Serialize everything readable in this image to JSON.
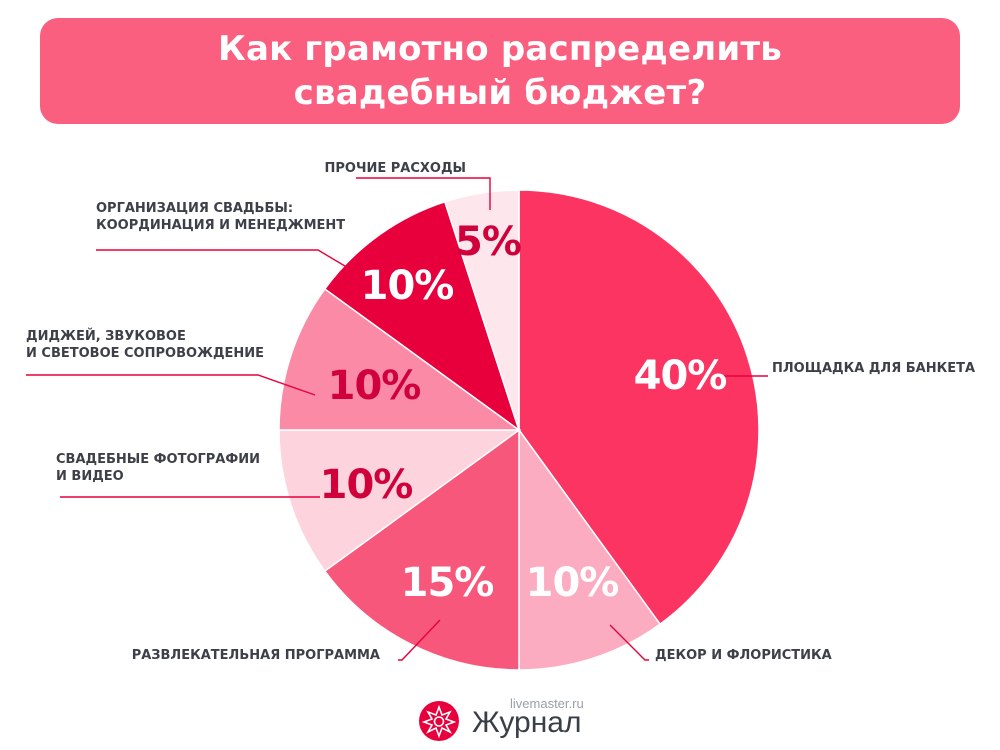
{
  "header": {
    "line1": "Как грамотно распределить",
    "line2": "свадебный бюджет?"
  },
  "chart_data": {
    "type": "pie",
    "title": "Как грамотно распределить свадебный бюджет?",
    "slices": [
      {
        "label": "ПЛОЩАДКА ДЛЯ БАНКЕТА",
        "value": 40,
        "value_label": "40%",
        "color": "#fb3462",
        "text_color": "#ffffff"
      },
      {
        "label": "ДЕКОР И ФЛОРИСТИКА",
        "value": 10,
        "value_label": "10%",
        "color": "#fcacc1",
        "text_color": "#ffffff"
      },
      {
        "label": "РАЗВЛЕКАТЕЛЬНАЯ ПРОГРАММА",
        "value": 15,
        "value_label": "15%",
        "color": "#f8577c",
        "text_color": "#ffffff"
      },
      {
        "label": "СВАДЕБНЫЕ ФОТОГРАФИИ\nИ ВИДЕО",
        "value": 10,
        "value_label": "10%",
        "color": "#fdd3de",
        "text_color": "#d0003a"
      },
      {
        "label": "ДИДЖЕЙ, ЗВУКОВОЕ\nИ СВЕТОВОЕ СОПРОВОЖДЕНИЕ",
        "value": 10,
        "value_label": "10%",
        "color": "#fa8aa6",
        "text_color": "#d0003a"
      },
      {
        "label": "ОРГАНИЗАЦИЯ СВАДЬБЫ:\nКООРДИНАЦИЯ И МЕНЕДЖМЕНТ",
        "value": 10,
        "value_label": "10%",
        "color": "#e8003c",
        "text_color": "#ffffff"
      },
      {
        "label": "ПРОЧИЕ РАСХОДЫ",
        "value": 5,
        "value_label": "5%",
        "color": "#fde6ec",
        "text_color": "#d0003a"
      }
    ],
    "start_angle_deg": 0,
    "direction": "clockwise",
    "leader_color": "#e8003c"
  },
  "logo": {
    "site": "livemaster.ru",
    "word": "Журнал",
    "color": "#e8003c"
  }
}
